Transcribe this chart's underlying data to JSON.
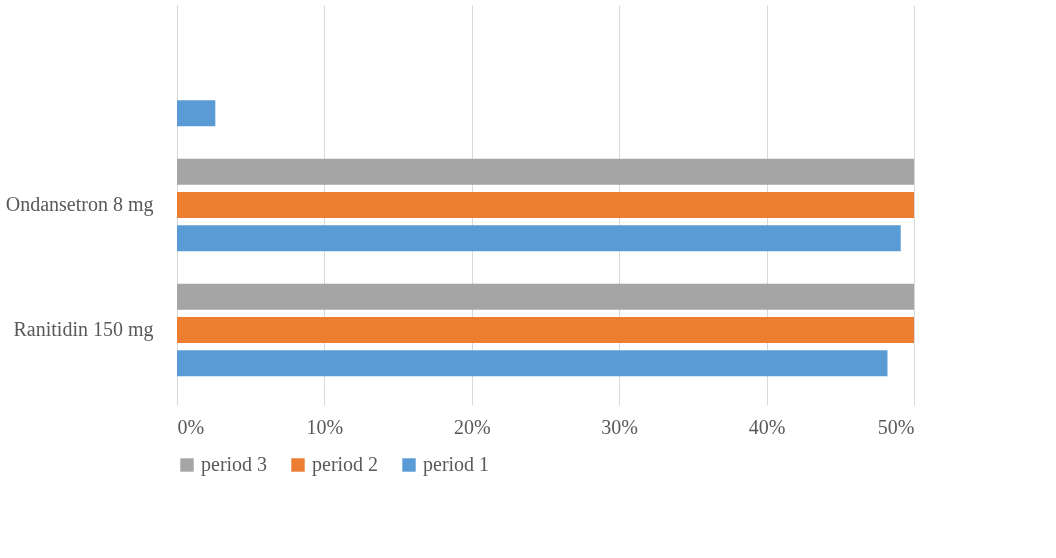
{
  "chart_data": {
    "type": "bar",
    "orientation": "horizontal",
    "categories": [
      null,
      "Ondansetron 8 mg",
      "Ranitidin 150 mg"
    ],
    "series": [
      {
        "name": "period 3",
        "color": "#a5a5a5",
        "values": [
          null,
          50,
          50
        ]
      },
      {
        "name": "period 2",
        "color": "#ed7d31",
        "values": [
          null,
          50,
          50
        ]
      },
      {
        "name": "period 1",
        "color": "#5b9bd5",
        "values": [
          2.6,
          49.1,
          48.2
        ]
      }
    ],
    "xlim": [
      0,
      50
    ],
    "xticks": [
      {
        "value": 0,
        "label": "0%"
      },
      {
        "value": 10,
        "label": "10%"
      },
      {
        "value": 20,
        "label": "20%"
      },
      {
        "value": 30,
        "label": "30%"
      },
      {
        "value": 40,
        "label": "40%"
      },
      {
        "value": 50,
        "label": "50%"
      }
    ],
    "grid": "x",
    "legend": "bottom"
  }
}
